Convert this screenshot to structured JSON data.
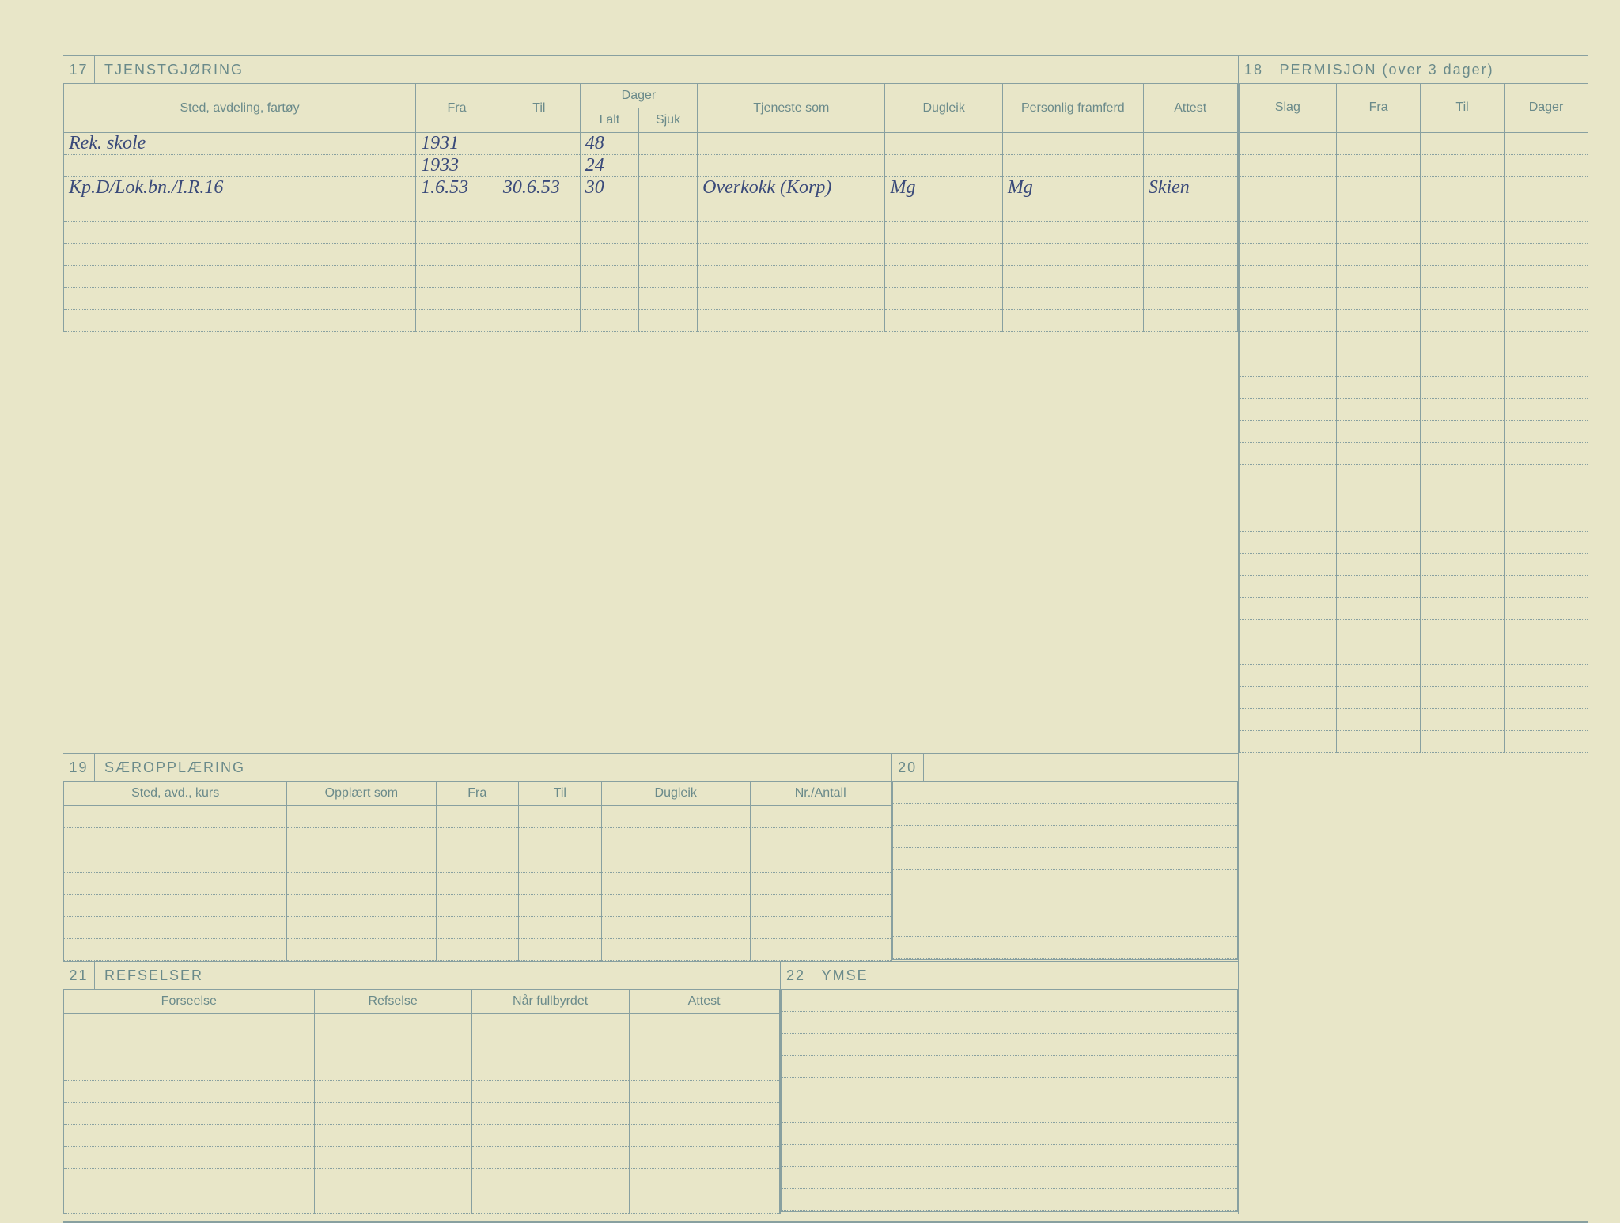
{
  "colors": {
    "paper": "#e8e6c8",
    "ink_printed": "#6a8a8a",
    "ink_handwriting": "#3a4a7a",
    "rule": "#88a0a0"
  },
  "section17": {
    "num": "17",
    "title": "TJENSTGJØRING",
    "headers": {
      "sted": "Sted, avdeling, fartøy",
      "fra": "Fra",
      "til": "Til",
      "dager": "Dager",
      "ialt": "I alt",
      "sjuk": "Sjuk",
      "tjeneste": "Tjeneste som",
      "dugleik": "Dugleik",
      "framferd": "Personlig framferd",
      "attest": "Attest"
    },
    "rows": [
      {
        "sted": "Rek. skole",
        "fra": "1931",
        "til": "",
        "ialt": "48",
        "sjuk": "",
        "tjeneste": "",
        "dugleik": "",
        "framferd": "",
        "attest": ""
      },
      {
        "sted": "",
        "fra": "1933",
        "til": "",
        "ialt": "24",
        "sjuk": "",
        "tjeneste": "",
        "dugleik": "",
        "framferd": "",
        "attest": ""
      },
      {
        "sted": "Kp.D/Lok.bn./I.R.16",
        "fra": "1.6.53",
        "til": "30.6.53",
        "ialt": "30",
        "sjuk": "",
        "tjeneste": "Overkokk (Korp)",
        "dugleik": "Mg",
        "framferd": "Mg",
        "attest": "Skien"
      },
      {
        "sted": "",
        "fra": "",
        "til": "",
        "ialt": "",
        "sjuk": "",
        "tjeneste": "",
        "dugleik": "",
        "framferd": "",
        "attest": ""
      },
      {
        "sted": "",
        "fra": "",
        "til": "",
        "ialt": "",
        "sjuk": "",
        "tjeneste": "",
        "dugleik": "",
        "framferd": "",
        "attest": ""
      },
      {
        "sted": "",
        "fra": "",
        "til": "",
        "ialt": "",
        "sjuk": "",
        "tjeneste": "",
        "dugleik": "",
        "framferd": "",
        "attest": ""
      },
      {
        "sted": "",
        "fra": "",
        "til": "",
        "ialt": "",
        "sjuk": "",
        "tjeneste": "",
        "dugleik": "",
        "framferd": "",
        "attest": ""
      },
      {
        "sted": "",
        "fra": "",
        "til": "",
        "ialt": "",
        "sjuk": "",
        "tjeneste": "",
        "dugleik": "",
        "framferd": "",
        "attest": ""
      },
      {
        "sted": "",
        "fra": "",
        "til": "",
        "ialt": "",
        "sjuk": "",
        "tjeneste": "",
        "dugleik": "",
        "framferd": "",
        "attest": ""
      }
    ]
  },
  "section18": {
    "num": "18",
    "title": "PERMISJON (over 3 dager)",
    "headers": {
      "slag": "Slag",
      "fra": "Fra",
      "til": "Til",
      "dager": "Dager"
    },
    "blank_rows": 28
  },
  "section19": {
    "num": "19",
    "title": "SÆROPPLÆRING",
    "headers": {
      "sted": "Sted, avd., kurs",
      "opplart": "Opplært som",
      "fra": "Fra",
      "til": "Til",
      "dugleik": "Dugleik",
      "nr": "Nr./Antall"
    },
    "blank_rows": 7
  },
  "section20": {
    "num": "20",
    "title": "",
    "blank_rows": 8
  },
  "section21": {
    "num": "21",
    "title": "REFSELSER",
    "headers": {
      "forseelse": "Forseelse",
      "refselse": "Refselse",
      "fullbyrdet": "Når fullbyrdet",
      "attest": "Attest"
    },
    "blank_rows": 9
  },
  "section22": {
    "num": "22",
    "title": "YMSE",
    "blank_rows": 10
  }
}
